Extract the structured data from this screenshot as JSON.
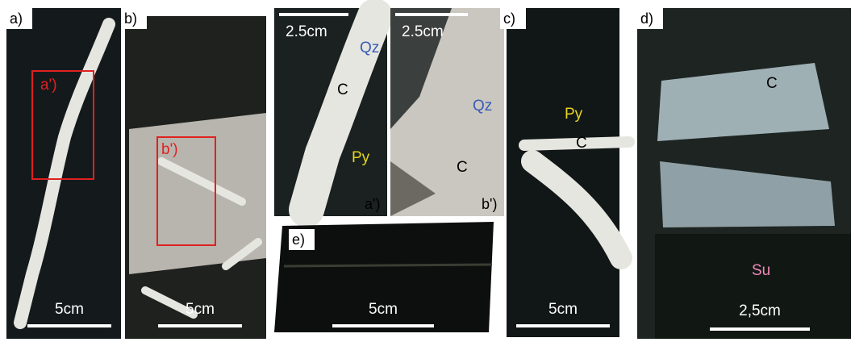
{
  "panels": [
    {
      "label": "a)",
      "subpanel_label": "a')",
      "scale": "5cm"
    },
    {
      "label": "b)",
      "subpanel_label": "b')",
      "scale": "5cm"
    },
    {
      "label": "a')",
      "scale": "2.5cm",
      "minerals": [
        "Qz",
        "C",
        "Py"
      ]
    },
    {
      "label": "b')",
      "scale": "2.5cm",
      "minerals": [
        "Qz",
        "C"
      ]
    },
    {
      "label": "e)",
      "scale": "5cm"
    },
    {
      "label": "c)",
      "scale": "5cm",
      "minerals": [
        "Py",
        "C"
      ]
    },
    {
      "label": "d)",
      "scale": "2,5cm",
      "minerals": [
        "C",
        "Su"
      ]
    }
  ]
}
